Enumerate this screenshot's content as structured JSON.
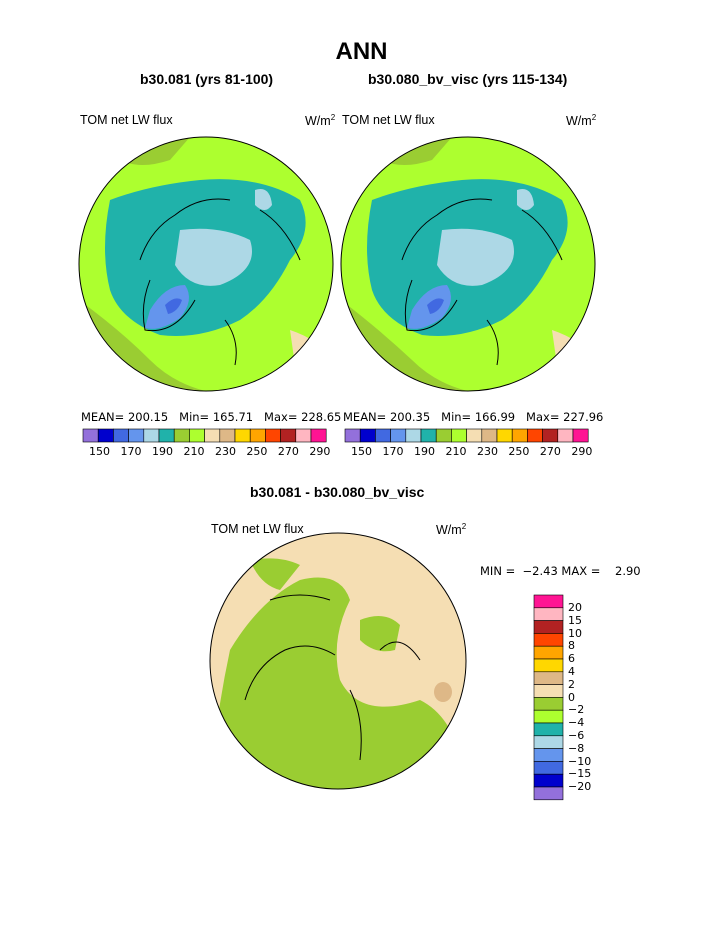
{
  "page": {
    "title": "ANN",
    "panel_left": {
      "case": "b30.081 (yrs 81-100)",
      "variable": "TOM net LW flux",
      "units_base": "W/m",
      "units_sup": "2",
      "stats": "MEAN= 200.15   Min= 165.71   Max= 228.65"
    },
    "panel_right": {
      "case": "b30.080_bv_visc (yrs 115-134)",
      "variable": "TOM net LW flux",
      "units_base": "W/m",
      "units_sup": "2",
      "stats": "MEAN= 200.35   Min= 166.99   Max= 227.96"
    },
    "abs_colorbar": {
      "colors": [
        "#9370db",
        "#0000cd",
        "#4169e1",
        "#6495ed",
        "#add8e6",
        "#20b2aa",
        "#9acd32",
        "#adff2f",
        "#f5deb3",
        "#deb887",
        "#ffd700",
        "#ffa500",
        "#ff4500",
        "#b22222",
        "#ffb6c1",
        "#ff1493"
      ],
      "tick_labels": "150   170   190   210   230   250   270   290"
    },
    "diff_panel": {
      "title": "b30.081 - b30.080_bv_visc",
      "variable": "TOM net LW flux",
      "units_base": "W/m",
      "units_sup": "2",
      "minmax": "MIN =  −2.43 MAX =    2.90"
    },
    "diff_colorbar": {
      "colors_top_to_bottom": [
        "#ff1493",
        "#ffb6c1",
        "#b22222",
        "#ff4500",
        "#ffa500",
        "#ffd700",
        "#deb887",
        "#f5deb3",
        "#9acd32",
        "#adff2f",
        "#20b2aa",
        "#add8e6",
        "#6495ed",
        "#4169e1",
        "#0000cd",
        "#9370db"
      ],
      "labels": [
        "20",
        "15",
        "10",
        "8",
        "6",
        "4",
        "2",
        "0",
        "−2",
        "−4",
        "−6",
        "−8",
        "−10",
        "−15",
        "−20"
      ]
    }
  }
}
